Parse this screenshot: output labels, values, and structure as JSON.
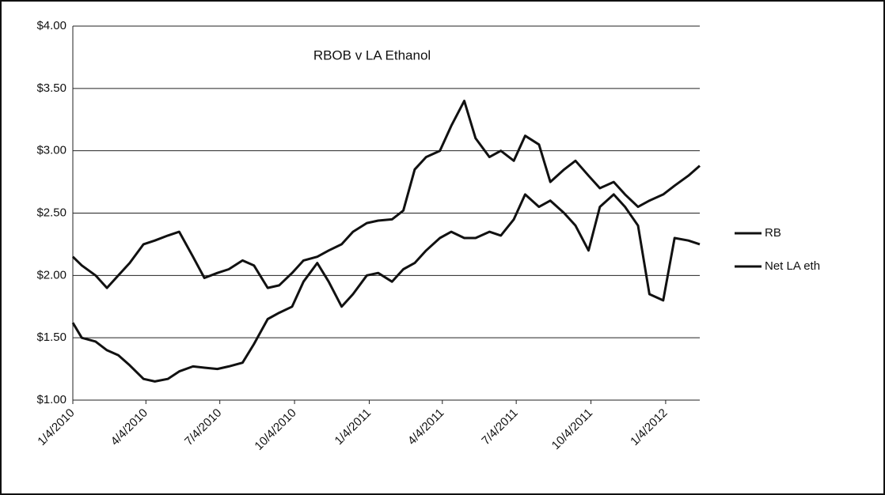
{
  "chart_data": {
    "type": "line",
    "title": "RBOB v LA Ethanol",
    "x": [
      "2010-01-04",
      "2010-01-15",
      "2010-02-01",
      "2010-02-15",
      "2010-03-01",
      "2010-03-15",
      "2010-04-01",
      "2010-04-15",
      "2010-05-01",
      "2010-05-15",
      "2010-06-01",
      "2010-06-15",
      "2010-07-01",
      "2010-07-15",
      "2010-08-01",
      "2010-08-15",
      "2010-09-01",
      "2010-09-15",
      "2010-10-01",
      "2010-10-15",
      "2010-11-01",
      "2010-11-15",
      "2010-12-01",
      "2010-12-15",
      "2011-01-01",
      "2011-01-15",
      "2011-02-01",
      "2011-02-15",
      "2011-03-01",
      "2011-03-15",
      "2011-04-01",
      "2011-04-15",
      "2011-05-01",
      "2011-05-15",
      "2011-06-01",
      "2011-06-15",
      "2011-07-01",
      "2011-07-15",
      "2011-08-01",
      "2011-08-15",
      "2011-09-01",
      "2011-09-15",
      "2011-10-01",
      "2011-10-15",
      "2011-11-01",
      "2011-11-15",
      "2011-12-01",
      "2011-12-15",
      "2012-01-01",
      "2012-01-15",
      "2012-02-01",
      "2012-02-15"
    ],
    "series": [
      {
        "name": "RB",
        "color": "#111111",
        "values": [
          2.15,
          2.08,
          2.0,
          1.9,
          2.0,
          2.1,
          2.25,
          2.28,
          2.32,
          2.35,
          2.15,
          1.98,
          2.02,
          2.05,
          2.12,
          2.08,
          1.9,
          1.92,
          2.02,
          2.12,
          2.15,
          2.2,
          2.25,
          2.35,
          2.42,
          2.44,
          2.45,
          2.52,
          2.85,
          2.95,
          3.0,
          3.2,
          3.4,
          3.1,
          2.95,
          3.0,
          2.92,
          3.12,
          3.05,
          2.75,
          2.85,
          2.92,
          2.8,
          2.7,
          2.75,
          2.65,
          2.55,
          2.6,
          2.65,
          2.72,
          2.8,
          2.88
        ]
      },
      {
        "name": "Net LA eth",
        "color": "#111111",
        "values": [
          1.62,
          1.5,
          1.47,
          1.4,
          1.36,
          1.28,
          1.17,
          1.15,
          1.17,
          1.23,
          1.27,
          1.26,
          1.25,
          1.27,
          1.3,
          1.45,
          1.65,
          1.7,
          1.75,
          1.95,
          2.1,
          1.95,
          1.75,
          1.85,
          2.0,
          2.02,
          1.95,
          2.05,
          2.1,
          2.2,
          2.3,
          2.35,
          2.3,
          2.3,
          2.35,
          2.32,
          2.45,
          2.65,
          2.55,
          2.6,
          2.5,
          2.4,
          2.2,
          2.55,
          2.65,
          2.55,
          2.4,
          1.85,
          1.8,
          2.3,
          2.28,
          2.25
        ]
      }
    ],
    "xlim": [
      "2010-01-04",
      "2012-02-15"
    ],
    "xticks": [
      {
        "value": "2010-01-04",
        "label": "1/4/2010"
      },
      {
        "value": "2010-04-04",
        "label": "4/4/2010"
      },
      {
        "value": "2010-07-04",
        "label": "7/4/2010"
      },
      {
        "value": "2010-10-04",
        "label": "10/4/2010"
      },
      {
        "value": "2011-01-04",
        "label": "1/4/2011"
      },
      {
        "value": "2011-04-04",
        "label": "4/4/2011"
      },
      {
        "value": "2011-07-04",
        "label": "7/4/2011"
      },
      {
        "value": "2011-10-04",
        "label": "10/4/2011"
      },
      {
        "value": "2012-01-04",
        "label": "1/4/2012"
      }
    ],
    "ylim": [
      1,
      4
    ],
    "yticks": [
      {
        "value": 1,
        "label": "$1.00"
      },
      {
        "value": 1.5,
        "label": "$1.50"
      },
      {
        "value": 2,
        "label": "$2.00"
      },
      {
        "value": 2.5,
        "label": "$2.50"
      },
      {
        "value": 3,
        "label": "$3.00"
      },
      {
        "value": 3.5,
        "label": "$3.50"
      },
      {
        "value": 4,
        "label": "$4.00"
      }
    ],
    "grid": true,
    "legend": "right"
  }
}
